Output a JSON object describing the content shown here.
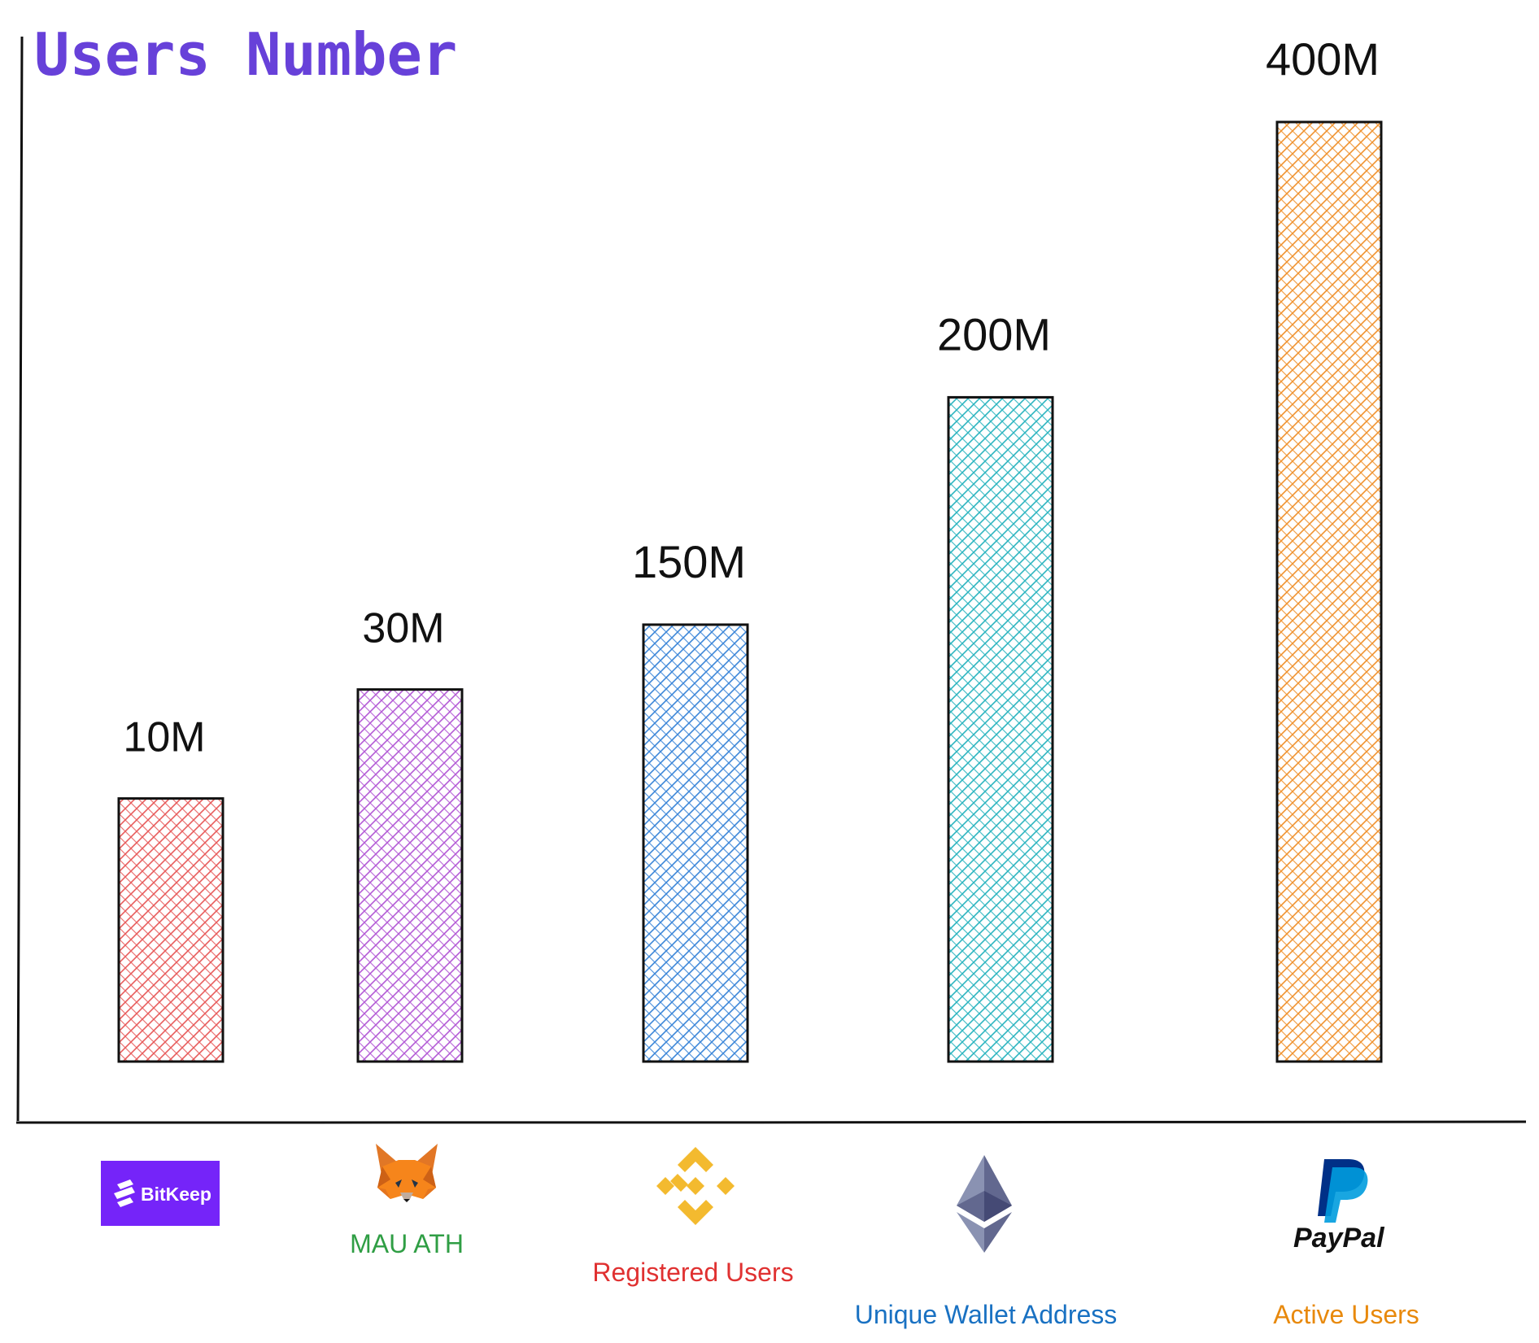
{
  "chart_data": {
    "type": "bar",
    "title": "Users Number",
    "xlabel": "",
    "ylabel": "",
    "ylim": [
      0,
      430
    ],
    "grid": false,
    "legend": "none",
    "categories": [
      "BitKeep",
      "MetaMask",
      "Binance",
      "Ethereum",
      "PayPal"
    ],
    "values": [
      10,
      30,
      150,
      200,
      400
    ],
    "value_labels": [
      "10M",
      "30M",
      "150M",
      "200M",
      "400M"
    ],
    "captions": [
      "",
      "MAU ATH",
      "Registered Users",
      "Unique Wallet Address",
      "Active Users"
    ],
    "bar_colors": [
      "#e85c5c",
      "#b35ad6",
      "#3b86d9",
      "#2cb5c0",
      "#f0922e"
    ],
    "caption_colors": [
      "#000000",
      "#2f9e44",
      "#e03131",
      "#1971c2",
      "#e8890c"
    ],
    "icons": [
      "bitkeep-logo-icon",
      "metamask-fox-icon",
      "binance-logo-icon",
      "ethereum-logo-icon",
      "paypal-logo-icon"
    ]
  },
  "colors": {
    "title": "#6741d9",
    "bitkeep_brand": "#7524f9",
    "binance_brand": "#f3ba2f",
    "paypal_dark": "#003087",
    "paypal_light": "#009cde",
    "eth_dark": "#3c3c3b",
    "eth_mid": "#8a92b2",
    "fox_orange": "#e2761b"
  },
  "logos": {
    "bitkeep_text": "BitKeep",
    "paypal_text": "PayPal"
  }
}
